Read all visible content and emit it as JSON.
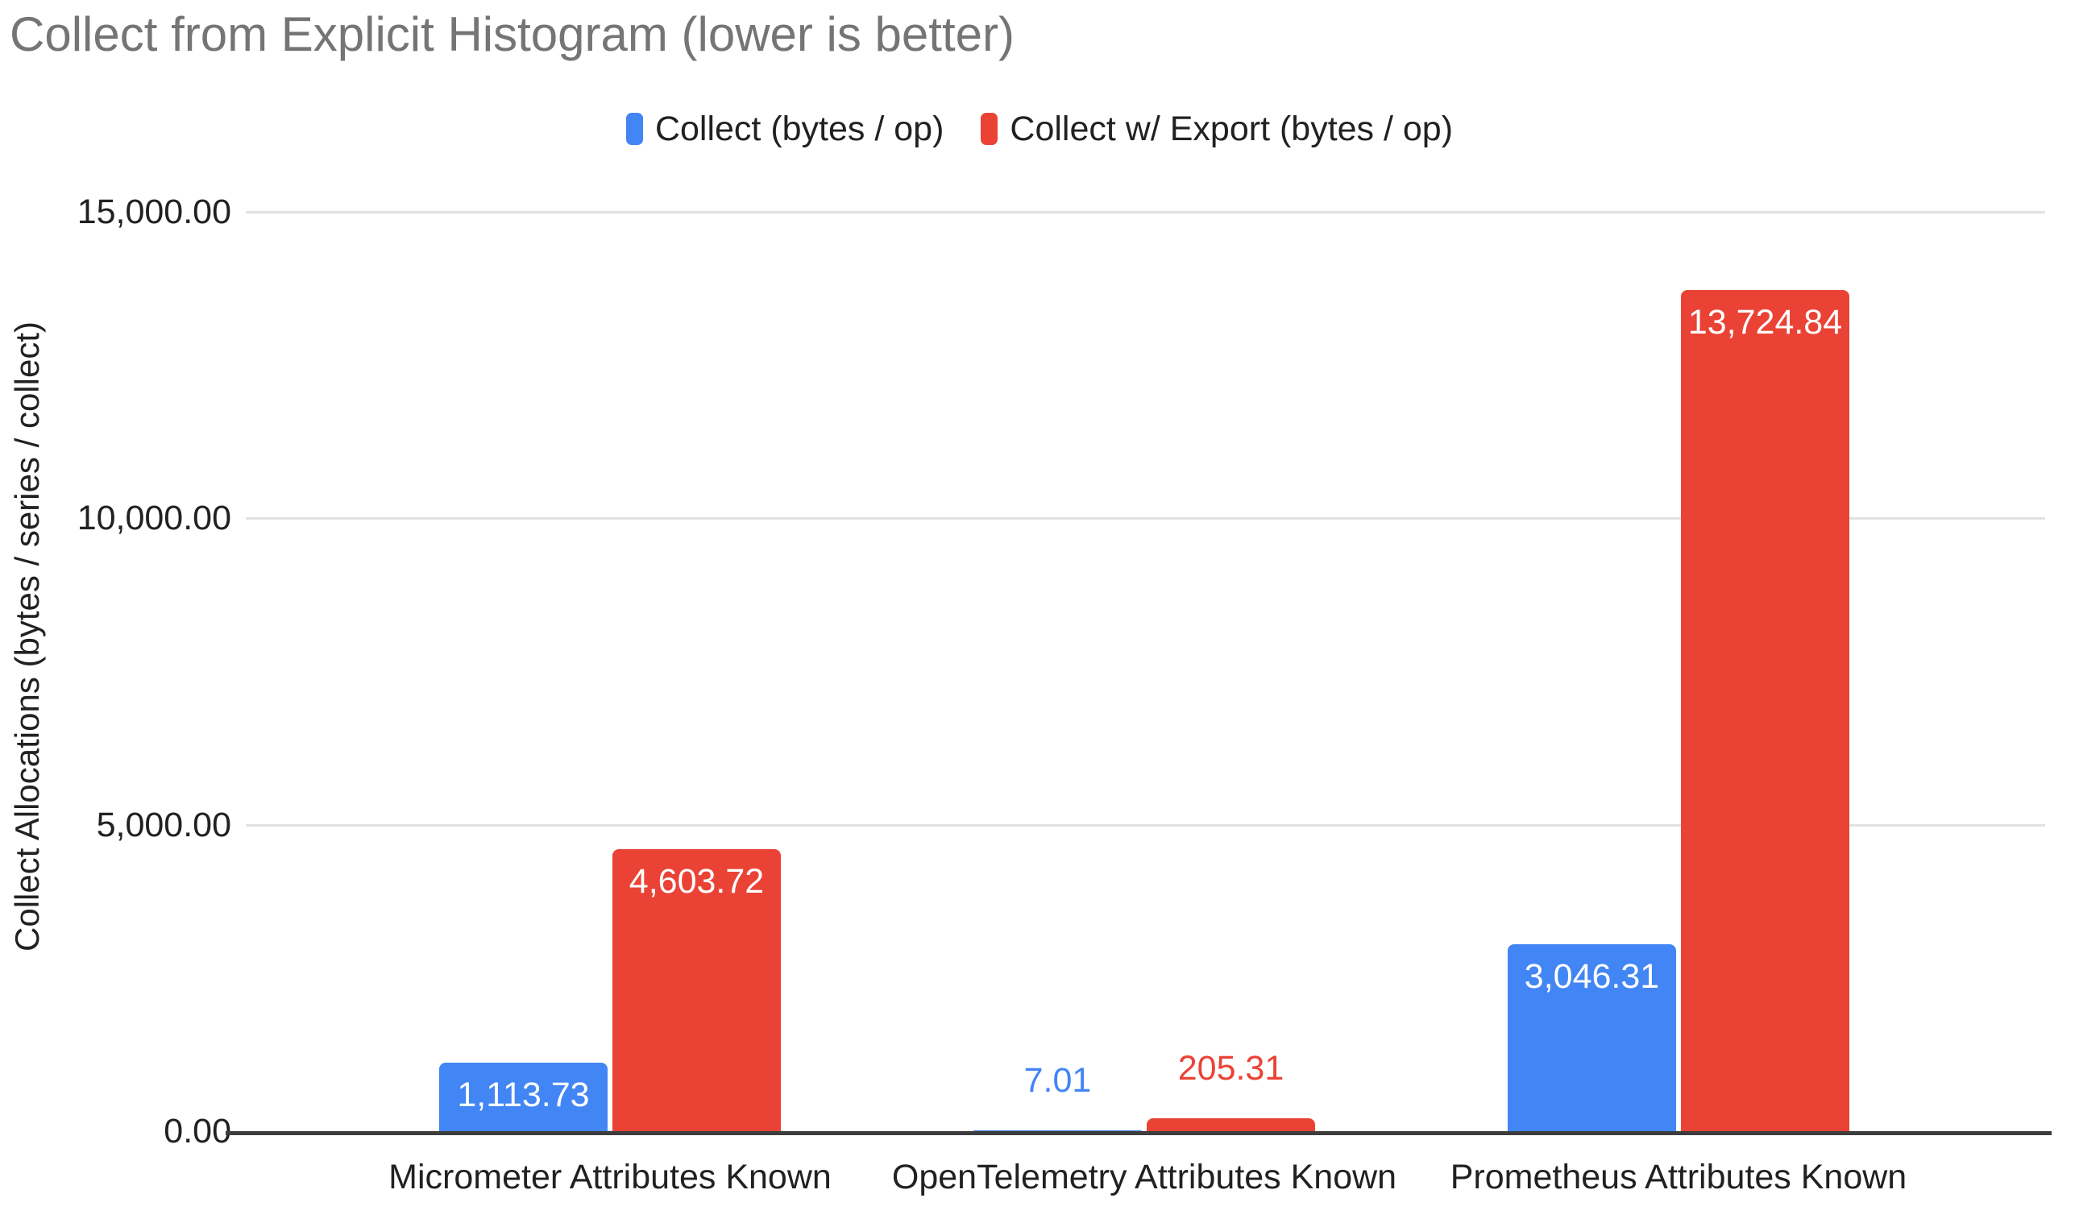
{
  "title": "Collect from Explicit Histogram (lower is better)",
  "colors": {
    "series_blue": "#4285F4",
    "series_red": "#EA4335",
    "title_text": "#757575",
    "axis_text": "#212121",
    "gridline": "#e2e2e2",
    "axis_line": "#3d3d3d",
    "background": "#ffffff",
    "bar_label_inside": "#ffffff"
  },
  "legend": {
    "items": [
      {
        "key": "collect",
        "label": "Collect (bytes / op)",
        "color": "#4285F4"
      },
      {
        "key": "collect-w-export",
        "label": "Collect w/ Export (bytes / op)",
        "color": "#EA4335"
      }
    ]
  },
  "y_axis": {
    "title": "Collect Allocations (bytes / series / collect)"
  },
  "chart_data": {
    "type": "bar",
    "title": "Collect from Explicit Histogram (lower is better)",
    "categories": [
      "Micrometer Attributes Known",
      "OpenTelemetry Attributes Known",
      "Prometheus Attributes Known"
    ],
    "category_keys": [
      "micrometer",
      "opentelemetry",
      "prometheus"
    ],
    "series": [
      {
        "name": "Collect (bytes / op)",
        "key": "collect",
        "color": "#4285F4",
        "values": [
          1113.73,
          7.01,
          3046.31
        ],
        "value_labels": [
          "1,113.73",
          "7.01",
          "3,046.31"
        ]
      },
      {
        "name": "Collect w/ Export (bytes / op)",
        "key": "collect-w-export",
        "color": "#EA4335",
        "values": [
          4603.72,
          205.31,
          13724.84
        ],
        "value_labels": [
          "4,603.72",
          "205.31",
          "13,724.84"
        ]
      }
    ],
    "xlabel": "",
    "ylabel": "Collect Allocations (bytes / series / collect)",
    "ylim": [
      0,
      15000
    ],
    "yticks": [
      0,
      5000,
      10000,
      15000
    ],
    "ytick_labels": [
      "0.00",
      "5,000.00",
      "10,000.00",
      "15,000.00"
    ],
    "grid": true,
    "legend_position": "top",
    "bar_label_placement": "inside-top, outside-above when bar too short"
  }
}
